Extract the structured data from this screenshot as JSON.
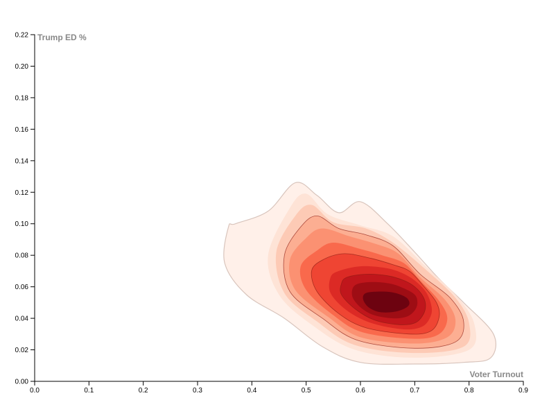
{
  "chart_data": {
    "type": "contour-density",
    "title": "",
    "xlabel": "Voter Turnout",
    "ylabel": "Trump ED %",
    "xlim": [
      0,
      0.9
    ],
    "ylim": [
      0,
      0.22
    ],
    "x_ticks": [
      "0.0",
      "0.1",
      "0.2",
      "0.3",
      "0.4",
      "0.5",
      "0.6",
      "0.7",
      "0.8",
      "0.9"
    ],
    "y_ticks": [
      "0.00",
      "0.02",
      "0.04",
      "0.06",
      "0.08",
      "0.10",
      "0.12",
      "0.14",
      "0.16",
      "0.18",
      "0.20",
      "0.22"
    ],
    "grid": false,
    "legend": "none",
    "colors": {
      "levels": [
        "#fff0e9",
        "#fee3d6",
        "#fdcab5",
        "#fcae92",
        "#fb9172",
        "#f9694c",
        "#ef4533",
        "#dc2a25",
        "#c0161c",
        "#9e0d14",
        "#6d0310"
      ],
      "outline": "#d8c4bc",
      "inner_line": "#8a1b12"
    },
    "density": {
      "peak": [
        0.655,
        0.05
      ],
      "levels": [
        {
          "points": [
            [
              0.37,
              0.1
            ],
            [
              0.43,
              0.108
            ],
            [
              0.48,
              0.126
            ],
            [
              0.52,
              0.118
            ],
            [
              0.56,
              0.107
            ],
            [
              0.6,
              0.114
            ],
            [
              0.65,
              0.1
            ],
            [
              0.7,
              0.082
            ],
            [
              0.745,
              0.065
            ],
            [
              0.79,
              0.05
            ],
            [
              0.845,
              0.03
            ],
            [
              0.84,
              0.015
            ],
            [
              0.79,
              0.012
            ],
            [
              0.7,
              0.011
            ],
            [
              0.6,
              0.012
            ],
            [
              0.53,
              0.022
            ],
            [
              0.46,
              0.04
            ],
            [
              0.39,
              0.055
            ],
            [
              0.35,
              0.075
            ],
            [
              0.357,
              0.098
            ]
          ]
        },
        {
          "points": [
            [
              0.47,
              0.11
            ],
            [
              0.5,
              0.119
            ],
            [
              0.54,
              0.106
            ],
            [
              0.6,
              0.099
            ],
            [
              0.66,
              0.092
            ],
            [
              0.72,
              0.073
            ],
            [
              0.78,
              0.053
            ],
            [
              0.81,
              0.036
            ],
            [
              0.8,
              0.02
            ],
            [
              0.7,
              0.015
            ],
            [
              0.59,
              0.02
            ],
            [
              0.51,
              0.036
            ],
            [
              0.45,
              0.055
            ],
            [
              0.43,
              0.08
            ]
          ]
        },
        {
          "points": [
            [
              0.48,
              0.105
            ],
            [
              0.51,
              0.112
            ],
            [
              0.55,
              0.101
            ],
            [
              0.61,
              0.097
            ],
            [
              0.66,
              0.088
            ],
            [
              0.72,
              0.071
            ],
            [
              0.775,
              0.053
            ],
            [
              0.8,
              0.037
            ],
            [
              0.79,
              0.022
            ],
            [
              0.7,
              0.018
            ],
            [
              0.59,
              0.023
            ],
            [
              0.52,
              0.038
            ],
            [
              0.46,
              0.056
            ],
            [
              0.445,
              0.082
            ]
          ]
        },
        {
          "points": [
            [
              0.49,
              0.098
            ],
            [
              0.52,
              0.105
            ],
            [
              0.56,
              0.097
            ],
            [
              0.61,
              0.093
            ],
            [
              0.66,
              0.086
            ],
            [
              0.71,
              0.068
            ],
            [
              0.765,
              0.053
            ],
            [
              0.79,
              0.038
            ],
            [
              0.775,
              0.025
            ],
            [
              0.7,
              0.021
            ],
            [
              0.595,
              0.026
            ],
            [
              0.53,
              0.04
            ],
            [
              0.47,
              0.057
            ],
            [
              0.46,
              0.08
            ]
          ]
        },
        {
          "points": [
            [
              0.5,
              0.091
            ],
            [
              0.53,
              0.097
            ],
            [
              0.58,
              0.092
            ],
            [
              0.63,
              0.087
            ],
            [
              0.67,
              0.081
            ],
            [
              0.71,
              0.066
            ],
            [
              0.755,
              0.052
            ],
            [
              0.775,
              0.039
            ],
            [
              0.76,
              0.028
            ],
            [
              0.7,
              0.024
            ],
            [
              0.6,
              0.028
            ],
            [
              0.54,
              0.041
            ],
            [
              0.48,
              0.058
            ],
            [
              0.47,
              0.077
            ]
          ]
        },
        {
          "points": [
            [
              0.52,
              0.083
            ],
            [
              0.55,
              0.088
            ],
            [
              0.6,
              0.084
            ],
            [
              0.64,
              0.08
            ],
            [
              0.68,
              0.075
            ],
            [
              0.71,
              0.064
            ],
            [
              0.745,
              0.051
            ],
            [
              0.76,
              0.04
            ],
            [
              0.745,
              0.03
            ],
            [
              0.7,
              0.027
            ],
            [
              0.605,
              0.031
            ],
            [
              0.55,
              0.042
            ],
            [
              0.5,
              0.058
            ],
            [
              0.49,
              0.073
            ]
          ]
        },
        {
          "points": [
            [
              0.53,
              0.077
            ],
            [
              0.57,
              0.081
            ],
            [
              0.62,
              0.078
            ],
            [
              0.66,
              0.074
            ],
            [
              0.69,
              0.07
            ],
            [
              0.715,
              0.061
            ],
            [
              0.74,
              0.05
            ],
            [
              0.745,
              0.041
            ],
            [
              0.73,
              0.032
            ],
            [
              0.69,
              0.03
            ],
            [
              0.61,
              0.034
            ],
            [
              0.56,
              0.043
            ],
            [
              0.52,
              0.057
            ],
            [
              0.51,
              0.07
            ]
          ]
        },
        {
          "points": [
            [
              0.56,
              0.07
            ],
            [
              0.6,
              0.073
            ],
            [
              0.645,
              0.072
            ],
            [
              0.675,
              0.069
            ],
            [
              0.7,
              0.064
            ],
            [
              0.72,
              0.057
            ],
            [
              0.73,
              0.049
            ],
            [
              0.73,
              0.042
            ],
            [
              0.715,
              0.035
            ],
            [
              0.68,
              0.033
            ],
            [
              0.62,
              0.037
            ],
            [
              0.575,
              0.045
            ],
            [
              0.545,
              0.056
            ],
            [
              0.545,
              0.066
            ]
          ]
        },
        {
          "points": [
            [
              0.575,
              0.066
            ],
            [
              0.61,
              0.068
            ],
            [
              0.65,
              0.067
            ],
            [
              0.68,
              0.064
            ],
            [
              0.7,
              0.06
            ],
            [
              0.715,
              0.054
            ],
            [
              0.72,
              0.048
            ],
            [
              0.715,
              0.042
            ],
            [
              0.7,
              0.037
            ],
            [
              0.67,
              0.036
            ],
            [
              0.625,
              0.039
            ],
            [
              0.59,
              0.046
            ],
            [
              0.565,
              0.055
            ],
            [
              0.565,
              0.062
            ]
          ]
        },
        {
          "points": [
            [
              0.59,
              0.061
            ],
            [
              0.62,
              0.063
            ],
            [
              0.655,
              0.062
            ],
            [
              0.68,
              0.059
            ],
            [
              0.7,
              0.055
            ],
            [
              0.705,
              0.05
            ],
            [
              0.7,
              0.045
            ],
            [
              0.685,
              0.041
            ],
            [
              0.66,
              0.04
            ],
            [
              0.625,
              0.042
            ],
            [
              0.6,
              0.047
            ],
            [
              0.585,
              0.054
            ]
          ]
        },
        {
          "points": [
            [
              0.61,
              0.056
            ],
            [
              0.64,
              0.057
            ],
            [
              0.665,
              0.056
            ],
            [
              0.685,
              0.053
            ],
            [
              0.69,
              0.049
            ],
            [
              0.68,
              0.046
            ],
            [
              0.66,
              0.044
            ],
            [
              0.635,
              0.044
            ],
            [
              0.615,
              0.047
            ],
            [
              0.605,
              0.052
            ]
          ]
        }
      ],
      "outlined_levels": [
        0,
        3,
        6,
        8
      ]
    }
  }
}
